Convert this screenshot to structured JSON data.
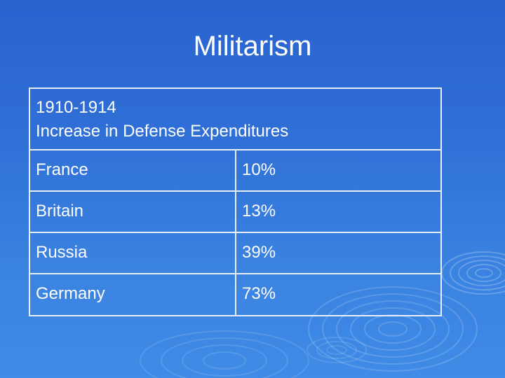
{
  "slide": {
    "title": "Militarism",
    "table": {
      "header_lines": [
        "1910-1914",
        "Increase in Defense Expenditures"
      ],
      "rows": [
        {
          "country": "France",
          "value": "10%"
        },
        {
          "country": "Britain",
          "value": "13%"
        },
        {
          "country": "Russia",
          "value": "39%"
        },
        {
          "country": "Germany",
          "value": "73%"
        }
      ]
    }
  },
  "colors": {
    "background": "#2f6fd6",
    "text": "#ffffff",
    "border": "#e8eef8"
  }
}
